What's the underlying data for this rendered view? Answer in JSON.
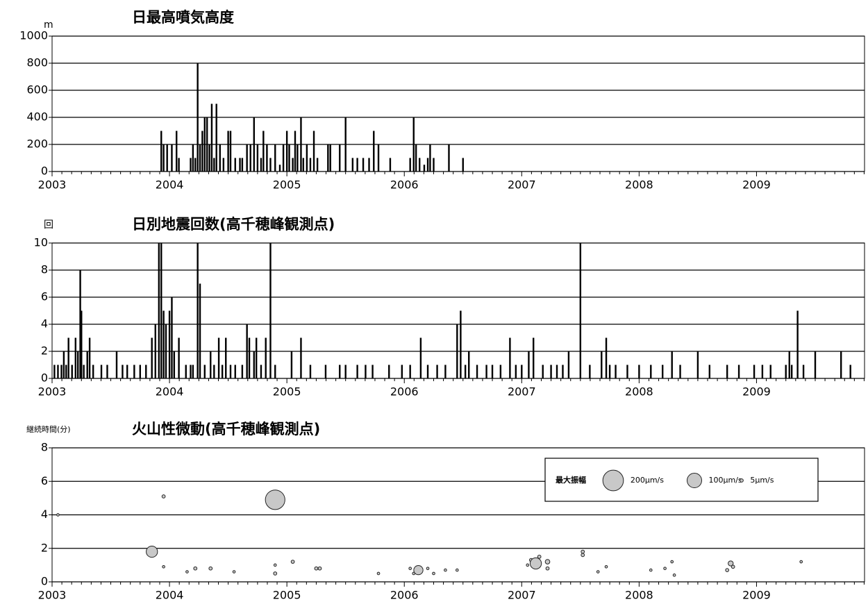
{
  "chart_data": [
    {
      "type": "bar",
      "title": "日最高噴気高度",
      "ylabel": "m",
      "color": "#000000",
      "xlim": [
        2003,
        2009.92
      ],
      "xticks": [
        2003,
        2004,
        2005,
        2006,
        2007,
        2008,
        2009
      ],
      "ylim": [
        0,
        1000
      ],
      "yticks": [
        0,
        200,
        400,
        600,
        800,
        1000
      ],
      "grid": true,
      "x": [
        2003.93,
        2003.95,
        2003.98,
        2004.02,
        2004.06,
        2004.08,
        2004.18,
        2004.2,
        2004.22,
        2004.24,
        2004.26,
        2004.28,
        2004.3,
        2004.32,
        2004.34,
        2004.36,
        2004.38,
        2004.4,
        2004.43,
        2004.46,
        2004.5,
        2004.52,
        2004.56,
        2004.6,
        2004.62,
        2004.66,
        2004.69,
        2004.72,
        2004.75,
        2004.78,
        2004.8,
        2004.83,
        2004.86,
        2004.9,
        2004.94,
        2004.97,
        2005.0,
        2005.02,
        2005.05,
        2005.07,
        2005.09,
        2005.12,
        2005.14,
        2005.17,
        2005.2,
        2005.23,
        2005.26,
        2005.35,
        2005.37,
        2005.45,
        2005.5,
        2005.56,
        2005.6,
        2005.65,
        2005.7,
        2005.74,
        2005.78,
        2005.88,
        2006.05,
        2006.08,
        2006.1,
        2006.13,
        2006.17,
        2006.2,
        2006.22,
        2006.25,
        2006.38,
        2006.5
      ],
      "values": [
        300,
        200,
        200,
        200,
        300,
        100,
        100,
        200,
        100,
        800,
        200,
        300,
        400,
        400,
        200,
        500,
        100,
        500,
        200,
        100,
        300,
        300,
        100,
        100,
        100,
        200,
        200,
        400,
        200,
        100,
        300,
        200,
        100,
        200,
        50,
        200,
        300,
        200,
        100,
        300,
        200,
        400,
        100,
        200,
        100,
        300,
        100,
        200,
        200,
        200,
        400,
        100,
        100,
        100,
        100,
        300,
        200,
        100,
        100,
        400,
        200,
        100,
        50,
        100,
        200,
        100,
        200,
        100
      ]
    },
    {
      "type": "bar",
      "title": "日別地震回数(高千穂峰観測点)",
      "ylabel": "回",
      "color": "#000000",
      "xlim": [
        2003,
        2009.92
      ],
      "xticks": [
        2003,
        2004,
        2005,
        2006,
        2007,
        2008,
        2009
      ],
      "ylim": [
        0,
        10
      ],
      "yticks": [
        0,
        2,
        4,
        6,
        8,
        10
      ],
      "grid": true,
      "x": [
        2003.02,
        2003.05,
        2003.08,
        2003.1,
        2003.12,
        2003.14,
        2003.17,
        2003.2,
        2003.22,
        2003.24,
        2003.25,
        2003.27,
        2003.3,
        2003.32,
        2003.35,
        2003.42,
        2003.47,
        2003.55,
        2003.6,
        2003.64,
        2003.7,
        2003.75,
        2003.8,
        2003.85,
        2003.88,
        2003.91,
        2003.93,
        2003.95,
        2003.97,
        2004.0,
        2004.02,
        2004.04,
        2004.08,
        2004.14,
        2004.18,
        2004.2,
        2004.24,
        2004.26,
        2004.3,
        2004.35,
        2004.38,
        2004.42,
        2004.45,
        2004.48,
        2004.52,
        2004.56,
        2004.62,
        2004.66,
        2004.68,
        2004.72,
        2004.74,
        2004.78,
        2004.82,
        2004.86,
        2004.9,
        2005.04,
        2005.12,
        2005.2,
        2005.33,
        2005.45,
        2005.5,
        2005.6,
        2005.67,
        2005.73,
        2005.87,
        2005.98,
        2006.05,
        2006.14,
        2006.2,
        2006.28,
        2006.35,
        2006.45,
        2006.48,
        2006.52,
        2006.55,
        2006.62,
        2006.7,
        2006.75,
        2006.82,
        2006.9,
        2006.95,
        2007.0,
        2007.06,
        2007.1,
        2007.18,
        2007.25,
        2007.3,
        2007.35,
        2007.4,
        2007.5,
        2007.58,
        2007.68,
        2007.72,
        2007.75,
        2007.8,
        2007.9,
        2008.0,
        2008.1,
        2008.2,
        2008.28,
        2008.35,
        2008.5,
        2008.6,
        2008.75,
        2008.85,
        2008.98,
        2009.05,
        2009.12,
        2009.25,
        2009.28,
        2009.3,
        2009.35,
        2009.4,
        2009.5,
        2009.72,
        2009.8
      ],
      "values": [
        1,
        1,
        1,
        2,
        1,
        3,
        1,
        3,
        2,
        8,
        5,
        1,
        2,
        3,
        1,
        1,
        1,
        2,
        1,
        1,
        1,
        1,
        1,
        3,
        4,
        10,
        10,
        5,
        4,
        5,
        6,
        2,
        3,
        1,
        1,
        1,
        10,
        7,
        1,
        2,
        1,
        3,
        1,
        3,
        1,
        1,
        1,
        4,
        3,
        2,
        3,
        1,
        3,
        10,
        1,
        2,
        3,
        1,
        1,
        1,
        1,
        1,
        1,
        1,
        1,
        1,
        1,
        3,
        1,
        1,
        1,
        4,
        5,
        1,
        2,
        1,
        1,
        1,
        1,
        3,
        1,
        1,
        2,
        3,
        1,
        1,
        1,
        1,
        2,
        10,
        1,
        2,
        3,
        1,
        1,
        1,
        1,
        1,
        1,
        2,
        1,
        2,
        1,
        1,
        1,
        1,
        1,
        1,
        1,
        2,
        1,
        5,
        1,
        2,
        2,
        1
      ]
    },
    {
      "type": "scatter",
      "title": "火山性微動(高千穂峰観測点)",
      "ylabel": "継続時間(分)",
      "color": "#c8c8c8",
      "xlim": [
        2003,
        2009.92
      ],
      "xticks": [
        2003,
        2004,
        2005,
        2006,
        2007,
        2008,
        2009
      ],
      "ylim": [
        0,
        8
      ],
      "yticks": [
        0,
        2,
        4,
        6,
        8
      ],
      "grid": true,
      "legend_title": "最大振幅",
      "size_legend": [
        {
          "value": 200,
          "label": "200μm/s"
        },
        {
          "value": 100,
          "label": "100μm/s"
        },
        {
          "value": 5,
          "label": "5μm/s"
        }
      ],
      "x": [
        2003.05,
        2003.95,
        2003.85,
        2004.9,
        2003.95,
        2004.15,
        2004.22,
        2004.35,
        2004.55,
        2004.9,
        2004.9,
        2005.05,
        2005.25,
        2005.28,
        2005.78,
        2006.05,
        2006.08,
        2006.12,
        2006.2,
        2006.25,
        2006.35,
        2006.45,
        2007.05,
        2007.08,
        2007.12,
        2007.15,
        2007.22,
        2007.22,
        2007.52,
        2007.52,
        2007.65,
        2007.72,
        2008.1,
        2008.22,
        2008.28,
        2008.3,
        2008.75,
        2008.78,
        2008.8,
        2009.38
      ],
      "y": [
        4,
        5.1,
        1.8,
        4.9,
        0.9,
        0.6,
        0.8,
        0.8,
        0.6,
        1,
        0.5,
        1.2,
        0.8,
        0.8,
        0.5,
        0.8,
        0.5,
        0.7,
        0.8,
        0.5,
        0.7,
        0.7,
        1,
        1.3,
        1.1,
        1.5,
        1.2,
        0.8,
        1.8,
        1.6,
        0.6,
        0.9,
        0.7,
        0.8,
        1.2,
        0.4,
        0.7,
        1.1,
        0.9,
        1.2
      ],
      "sizes": [
        3,
        5,
        60,
        180,
        3,
        3,
        5,
        5,
        3,
        3,
        5,
        5,
        5,
        5,
        3,
        3,
        3,
        40,
        3,
        3,
        3,
        3,
        3,
        5,
        60,
        5,
        10,
        5,
        5,
        5,
        3,
        3,
        3,
        3,
        3,
        3,
        5,
        12,
        5,
        3
      ]
    }
  ]
}
